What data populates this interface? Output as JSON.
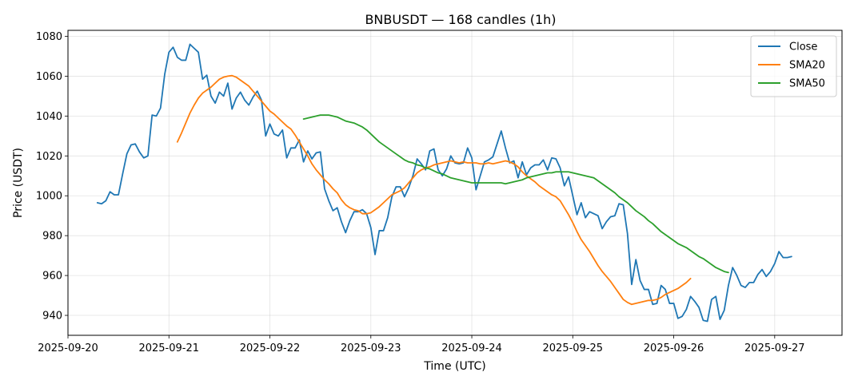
{
  "chart_data": {
    "type": "line",
    "title": "BNBUSDT — 168 candles (1h)",
    "xlabel": "Time (UTC)",
    "ylabel": "Price (USDT)",
    "x_start": "2025-09-20 07:00",
    "x_interval_hours": 1,
    "xlim": [
      "2025-09-20",
      "2025-09-27 16:00"
    ],
    "ylim": [
      930,
      1083
    ],
    "x_ticks": [
      "2025-09-20",
      "2025-09-21",
      "2025-09-22",
      "2025-09-23",
      "2025-09-24",
      "2025-09-25",
      "2025-09-26",
      "2025-09-27"
    ],
    "y_ticks": [
      940,
      960,
      980,
      1000,
      1020,
      1040,
      1060,
      1080
    ],
    "grid": true,
    "legend_position": "top-right",
    "series": [
      {
        "name": "Close",
        "color": "#1f77b4",
        "offset": 0,
        "values": [
          996.5,
          996,
          997.5,
          1002,
          1000.5,
          1000.5,
          1011,
          1021,
          1025.5,
          1026,
          1022,
          1019,
          1020,
          1040.5,
          1040,
          1044,
          1061,
          1072,
          1074.5,
          1069.5,
          1068,
          1068,
          1076,
          1074,
          1072,
          1058.5,
          1060.5,
          1050,
          1046.5,
          1052,
          1050,
          1056.5,
          1043.5,
          1049,
          1052,
          1048,
          1045.5,
          1049.5,
          1052.5,
          1048,
          1030,
          1036,
          1031,
          1030,
          1033,
          1019,
          1024,
          1024,
          1028,
          1017,
          1022.5,
          1018.5,
          1021.5,
          1022,
          1003.5,
          997.5,
          992.5,
          994,
          987,
          981.5,
          987.5,
          992,
          992,
          993,
          991,
          984,
          970.5,
          982.5,
          982.5,
          989,
          999.5,
          1004.5,
          1004.5,
          999.5,
          1004,
          1010,
          1018.5,
          1016,
          1013,
          1022.5,
          1023.5,
          1013,
          1010,
          1013.5,
          1020,
          1016.5,
          1016,
          1016.5,
          1024,
          1019,
          1003,
          1010,
          1017,
          1018,
          1019.5,
          1026,
          1032.5,
          1024,
          1016.5,
          1017.5,
          1009,
          1017,
          1010.5,
          1014,
          1015.5,
          1015.5,
          1018,
          1013,
          1019,
          1018.5,
          1014,
          1005,
          1009.5,
          1000,
          990.5,
          996.5,
          989,
          992,
          991,
          990,
          983.5,
          987,
          989.5,
          990,
          996,
          995.5,
          981,
          955.5,
          968,
          957.5,
          953,
          953,
          945.5,
          946,
          955,
          953,
          946,
          946,
          938.5,
          939.5,
          943,
          949.5,
          947,
          944,
          937.5,
          937,
          948,
          949.5,
          938,
          942.5,
          955,
          964,
          960,
          955,
          954,
          956.5,
          956.5,
          960.5,
          963,
          959.5,
          962,
          966,
          972,
          969,
          969,
          969.5
        ]
      },
      {
        "name": "SMA20",
        "color": "#ff7f0e",
        "offset": 19,
        "values": [
          1027,
          1031.5,
          1036.5,
          1041.5,
          1045.5,
          1049,
          1051.5,
          1053,
          1054.5,
          1056.5,
          1058.5,
          1059.5,
          1060,
          1060.3,
          1059.5,
          1058,
          1056.5,
          1055,
          1052.5,
          1050,
          1047.5,
          1045,
          1042.5,
          1041,
          1039,
          1037,
          1035,
          1033.5,
          1030.5,
          1027,
          1023.5,
          1020,
          1016,
          1013,
          1010.5,
          1008,
          1006,
          1003.5,
          1001.5,
          998,
          995.5,
          994,
          993,
          992.5,
          991,
          991,
          991.5,
          993,
          994.5,
          996.5,
          998.5,
          1000.5,
          1001.5,
          1002.5,
          1004,
          1006.5,
          1009,
          1011.5,
          1013,
          1014,
          1014.5,
          1015.5,
          1016,
          1016.5,
          1017,
          1017.5,
          1017,
          1016.5,
          1017,
          1016.5,
          1016.5,
          1016.5,
          1016,
          1016,
          1016.5,
          1016,
          1016.5,
          1017,
          1017.5,
          1017,
          1016,
          1014.5,
          1012,
          1010,
          1008.5,
          1007,
          1005,
          1003.5,
          1002,
          1000.5,
          999.5,
          997.5,
          994,
          990.5,
          986.5,
          982,
          978,
          975,
          972,
          968.5,
          965,
          962,
          959.5,
          957,
          954,
          951,
          948,
          946.5,
          945.5,
          946,
          946.5,
          947,
          947.5,
          947.5,
          948,
          949,
          950.5,
          951.5,
          952.5,
          953.5,
          955,
          956.5,
          958.5
        ]
      },
      {
        "name": "SMA50",
        "color": "#2ca02c",
        "offset": 49,
        "values": [
          1038.5,
          1039,
          1039.5,
          1040,
          1040.5,
          1040.5,
          1040.5,
          1040,
          1039.5,
          1038.5,
          1037.5,
          1037,
          1036.5,
          1035.5,
          1034.5,
          1033,
          1031,
          1029,
          1027,
          1025.5,
          1024,
          1022.5,
          1021,
          1019.5,
          1018,
          1017,
          1016.5,
          1015.5,
          1015,
          1014,
          1013.5,
          1012.5,
          1011.5,
          1011,
          1010,
          1009,
          1008.5,
          1008,
          1007.5,
          1007,
          1006.5,
          1006.5,
          1006.5,
          1006.5,
          1006.5,
          1006.5,
          1006.5,
          1006.5,
          1006,
          1006.5,
          1007,
          1007.5,
          1008,
          1009,
          1009.5,
          1010,
          1010.5,
          1011,
          1011.5,
          1011.5,
          1012,
          1012,
          1012,
          1012,
          1011.5,
          1011,
          1010.5,
          1010,
          1009.5,
          1009,
          1007.5,
          1006,
          1004.5,
          1003,
          1001.5,
          999.5,
          998,
          996.5,
          994.5,
          992.5,
          991,
          989.5,
          987.5,
          986,
          984,
          982,
          980.5,
          979,
          977.5,
          976,
          975,
          974,
          972.5,
          971,
          969.5,
          968.5,
          967,
          965.5,
          964,
          963,
          962,
          961.5
        ]
      }
    ]
  }
}
